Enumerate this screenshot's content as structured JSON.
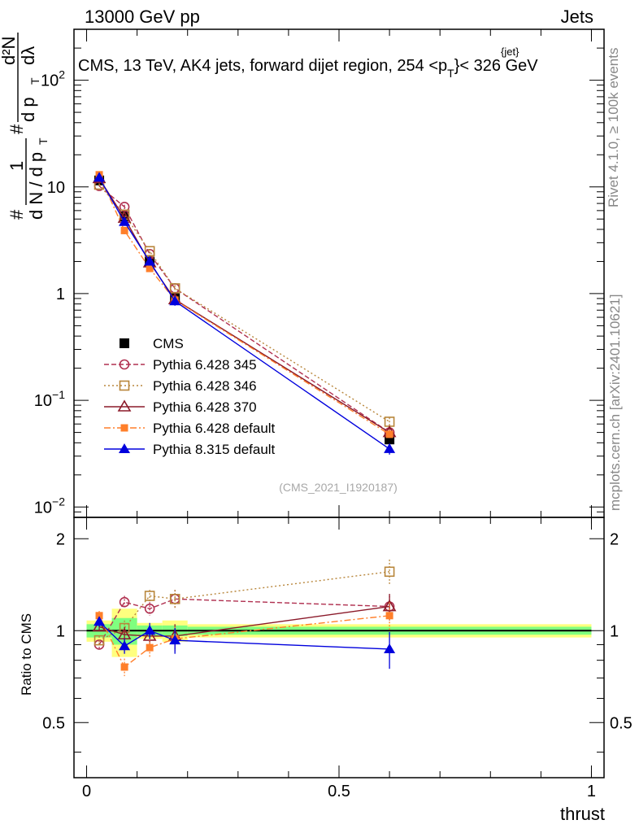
{
  "header": {
    "left": "13000 GeV pp",
    "right": "Jets",
    "title_main": "CMS, 13 TeV, AK4 jets, forward dijet region, 254 <p",
    "title_sup": "{jet}",
    "title_sub": "T",
    "title_end": "}< 326 GeV"
  },
  "side": {
    "rivet": "Rivet 4.1.0, ≥ 100k events",
    "mcplots": "mcplots.cern.ch [arXiv:2401.10621]"
  },
  "ylabel": {
    "hash1": "#",
    "one": "1",
    "dn_dpt": "d N / d p",
    "sub_t": "T",
    "hash2": "#",
    "d2n": "d²N",
    "dpt_dlambda": "d p",
    "sub_t2": "T",
    "dlambda": "dλ"
  },
  "watermark": "(CMS_2021_I1920187)",
  "colors": {
    "cms": "#000000",
    "p345": "#b03050",
    "p346": "#b8863b",
    "p370": "#8b1a2a",
    "p6def": "#ff7f2a",
    "p8def": "#0000dd",
    "band_inner": "#7fff7f",
    "band_outer": "#ffff7f"
  },
  "chart_data": [
    {
      "panel": "main",
      "type": "scatter",
      "yscale": "log",
      "xlim": [
        0,
        1
      ],
      "ylim": [
        0.008,
        300
      ],
      "yticks": [
        {
          "base": "10",
          "exp": "2",
          "v": 100
        },
        {
          "base": "10",
          "exp": "",
          "v": 10
        },
        {
          "base": "1",
          "exp": "",
          "v": 1
        },
        {
          "base": "10",
          "exp": "−1",
          "v": 0.1
        },
        {
          "base": "10",
          "exp": "−2",
          "v": 0.01
        }
      ],
      "x": [
        0.025,
        0.075,
        0.125,
        0.175,
        0.6
      ],
      "series": [
        {
          "name": "CMS",
          "key": "cms",
          "style": "square-filled",
          "values": [
            11.5,
            5.3,
            2.0,
            0.92,
            0.043
          ],
          "errors": [
            0.6,
            0.3,
            0.12,
            0.06,
            0.005
          ]
        },
        {
          "name": "Pythia 6.428 345",
          "key": "p345",
          "style": "circle-open",
          "values": [
            10.2,
            6.5,
            2.35,
            1.12,
            0.05
          ],
          "errors": [
            0.3,
            0.3,
            0.12,
            0.08,
            0.005
          ]
        },
        {
          "name": "Pythia 6.428 346",
          "key": "p346",
          "style": "square-open",
          "values": [
            10.5,
            5.5,
            2.5,
            1.12,
            0.063
          ],
          "errors": [
            0.3,
            0.3,
            0.12,
            0.08,
            0.006
          ]
        },
        {
          "name": "Pythia 6.428 370",
          "key": "p370",
          "style": "triangle-open",
          "values": [
            12.0,
            5.1,
            1.95,
            0.88,
            0.05
          ],
          "errors": [
            0.3,
            0.3,
            0.12,
            0.08,
            0.005
          ]
        },
        {
          "name": "Pythia 6.428 default",
          "key": "p6def",
          "style": "square-small",
          "values": [
            13.0,
            3.9,
            1.72,
            0.87,
            0.048
          ],
          "errors": [
            0.4,
            0.3,
            0.12,
            0.08,
            0.005
          ]
        },
        {
          "name": "Pythia 8.315 default",
          "key": "p8def",
          "style": "triangle-filled",
          "values": [
            12.2,
            4.7,
            2.0,
            0.85,
            0.035
          ],
          "errors": [
            0.4,
            0.3,
            0.12,
            0.08,
            0.004
          ]
        }
      ]
    },
    {
      "panel": "ratio",
      "type": "scatter",
      "ylabel": "Ratio to CMS",
      "xlabel": "thrust",
      "xlim": [
        -0.025,
        1.025
      ],
      "ylim": [
        0.33,
        2.35
      ],
      "yticks": [
        "2",
        "1",
        "0.5"
      ],
      "yticks_v": [
        2,
        1,
        0.5
      ],
      "xticks": [
        "0",
        "0.5",
        "1"
      ],
      "xticks_v": [
        0,
        0.5,
        1
      ],
      "x": [
        0.025,
        0.075,
        0.125,
        0.175,
        0.6
      ],
      "band_edges": [
        0.0,
        0.05,
        0.1,
        0.15,
        0.2,
        1.0
      ],
      "band_inner": [
        0.05,
        0.1,
        0.04,
        0.04,
        0.03
      ],
      "band_outer": [
        0.08,
        0.18,
        0.06,
        0.08,
        0.05
      ],
      "series": [
        {
          "key": "p345",
          "style": "circle-open",
          "values": [
            0.9,
            1.24,
            1.18,
            1.27,
            1.2
          ],
          "errors": [
            0.03,
            0.06,
            0.06,
            0.09,
            0.1
          ]
        },
        {
          "key": "p346",
          "style": "square-open",
          "values": [
            0.93,
            1.02,
            1.3,
            1.27,
            1.56
          ],
          "errors": [
            0.03,
            0.06,
            0.06,
            0.09,
            0.15
          ]
        },
        {
          "key": "p370",
          "style": "triangle-open",
          "values": [
            1.03,
            0.97,
            0.96,
            0.96,
            1.2
          ],
          "errors": [
            0.03,
            0.06,
            0.06,
            0.09,
            0.12
          ]
        },
        {
          "key": "p6def",
          "style": "square-small",
          "values": [
            1.12,
            0.76,
            0.88,
            0.94,
            1.12
          ],
          "errors": [
            0.04,
            0.05,
            0.06,
            0.09,
            0.12
          ]
        },
        {
          "key": "p8def",
          "style": "triangle-filled",
          "values": [
            1.07,
            0.89,
            1.0,
            0.93,
            0.87
          ],
          "errors": [
            0.04,
            0.05,
            0.06,
            0.09,
            0.12
          ]
        }
      ]
    }
  ]
}
